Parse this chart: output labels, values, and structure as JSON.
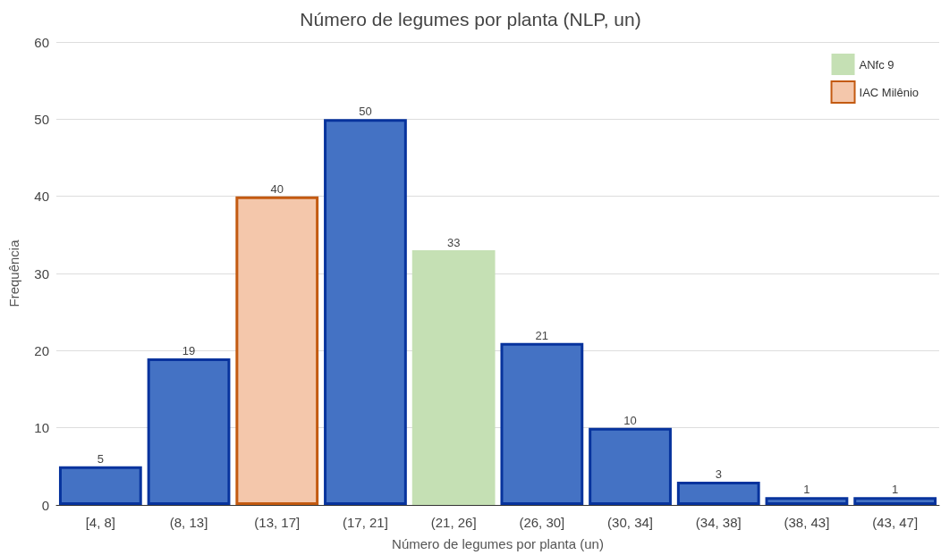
{
  "chart_data": {
    "type": "bar",
    "title": "Número de legumes por planta (NLP, un)",
    "xlabel": "Número de legumes por planta (un)",
    "ylabel": "Frequência",
    "categories": [
      "[4, 8]",
      "(8, 13]",
      "(13, 17]",
      "(17, 21]",
      "(21, 26]",
      "(26, 30]",
      "(30, 34]",
      "(34, 38]",
      "(38, 43]",
      "(43, 47]"
    ],
    "series": [
      {
        "color": "#4472c4",
        "values": [
          5,
          19,
          null,
          50,
          null,
          21,
          10,
          3,
          1,
          1
        ]
      },
      {
        "name": "ANfc 9",
        "color": "#c5e0b4",
        "values": [
          null,
          null,
          null,
          null,
          33,
          null,
          null,
          null,
          null,
          null
        ]
      },
      {
        "name": "IAC Milênio",
        "color": "#f4c7ab",
        "values": [
          null,
          null,
          40,
          null,
          null,
          null,
          null,
          null,
          null,
          null
        ]
      }
    ],
    "stacked": true,
    "ylim": [
      0,
      60
    ],
    "yticks": [
      0,
      10,
      20,
      30,
      40,
      50,
      60
    ],
    "grid": "y",
    "legend": "top right",
    "data_labels": true
  }
}
